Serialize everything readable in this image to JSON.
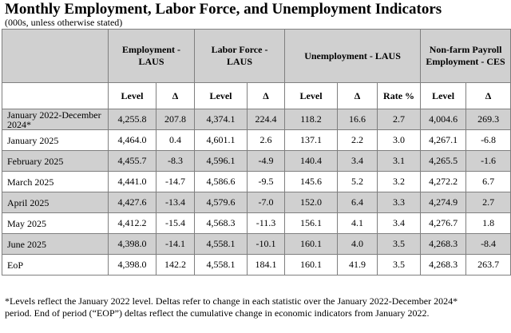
{
  "title": "Monthly Employment, Labor Force, and Unemployment Indicators",
  "subtitle": "(000s, unless otherwise stated)",
  "groups": [
    "Employment - LAUS",
    "Labor Force - LAUS",
    "Unemployment - LAUS",
    "Non-farm Payroll Employment - CES"
  ],
  "subheaders": [
    "Level",
    "Δ",
    "Level",
    "Δ",
    "Level",
    "Δ",
    "Rate %",
    "Level",
    "Δ"
  ],
  "rows": [
    {
      "label": "January 2022-December 2024*",
      "v": [
        "4,255.8",
        "207.8",
        "4,374.1",
        "224.4",
        "118.2",
        "16.6",
        "2.7",
        "4,004.6",
        "269.3"
      ]
    },
    {
      "label": "January 2025",
      "v": [
        "4,464.0",
        "0.4",
        "4,601.1",
        "2.6",
        "137.1",
        "2.2",
        "3.0",
        "4,267.1",
        "-6.8"
      ]
    },
    {
      "label": "February 2025",
      "v": [
        "4,455.7",
        "-8.3",
        "4,596.1",
        "-4.9",
        "140.4",
        "3.4",
        "3.1",
        "4,265.5",
        "-1.6"
      ]
    },
    {
      "label": "March 2025",
      "v": [
        "4,441.0",
        "-14.7",
        "4,586.6",
        "-9.5",
        "145.6",
        "5.2",
        "3.2",
        "4,272.2",
        "6.7"
      ]
    },
    {
      "label": "April 2025",
      "v": [
        "4,427.6",
        "-13.4",
        "4,579.6",
        "-7.0",
        "152.0",
        "6.4",
        "3.3",
        "4,274.9",
        "2.7"
      ]
    },
    {
      "label": "May 2025",
      "v": [
        "4,412.2",
        "-15.4",
        "4,568.3",
        "-11.3",
        "156.1",
        "4.1",
        "3.4",
        "4,276.7",
        "1.8"
      ]
    },
    {
      "label": "June 2025",
      "v": [
        "4,398.0",
        "-14.1",
        "4,558.1",
        "-10.1",
        "160.1",
        "4.0",
        "3.5",
        "4,268.3",
        "-8.4"
      ]
    },
    {
      "label": "EoP",
      "v": [
        "4,398.0",
        "142.2",
        "4,558.1",
        "184.1",
        "160.1",
        "41.9",
        "3.5",
        "4,268.3",
        "263.7"
      ]
    }
  ],
  "footnote": "*Levels reflect the January 2022 level. Deltas refer to change in each statistic over the January 2022-December 2024* period. End of period (“EOP”) deltas reflect the cumulative change in economic indicators from January 2022."
}
